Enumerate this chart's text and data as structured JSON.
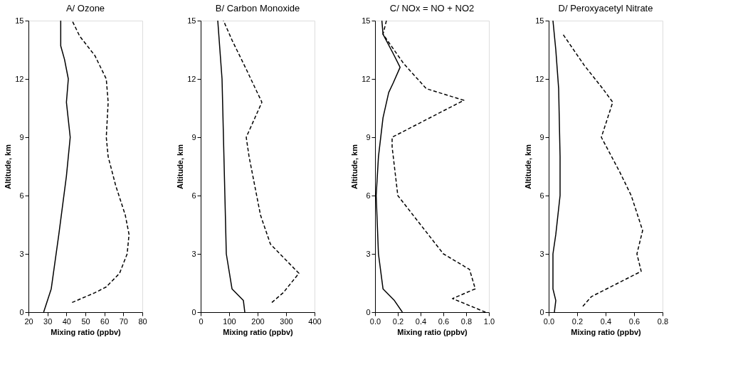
{
  "chart_data": [
    {
      "type": "line",
      "title": "A/ Ozone",
      "xlabel": "Mixing ratio (ppbv)",
      "ylabel": "Altitude, km",
      "xlim": [
        20,
        80
      ],
      "xticks": [
        20,
        30,
        40,
        50,
        60,
        70,
        80
      ],
      "ylim": [
        0,
        15
      ],
      "yticks": [
        0,
        3,
        6,
        9,
        12,
        15
      ],
      "grid": false,
      "series": [
        {
          "color": "#000000",
          "line_style": "solid",
          "x": [
            28,
            32,
            36,
            40,
            42,
            40,
            41,
            39,
            37,
            37
          ],
          "values": [
            0,
            1.2,
            4,
            7,
            9,
            10.8,
            12,
            13,
            13.7,
            15
          ]
        },
        {
          "color": "#000000",
          "line_style": "dashed",
          "x": [
            43,
            55,
            61,
            68,
            72,
            73,
            71,
            66,
            62,
            61,
            62,
            61,
            55,
            47,
            43
          ],
          "values": [
            0.5,
            1,
            1.3,
            2,
            3,
            4,
            5,
            6.5,
            8,
            9,
            10.8,
            12,
            13.2,
            14.2,
            15
          ]
        }
      ]
    },
    {
      "type": "line",
      "title": "B/ Carbon Monoxide",
      "xlabel": "Mixing ratio (ppbv)",
      "ylabel": "Altitude, km",
      "xlim": [
        0,
        400
      ],
      "xticks": [
        0,
        100,
        200,
        300,
        400
      ],
      "ylim": [
        0,
        15
      ],
      "yticks": [
        0,
        3,
        6,
        9,
        12,
        15
      ],
      "grid": false,
      "series": [
        {
          "color": "#000000",
          "line_style": "solid",
          "x": [
            155,
            150,
            110,
            90,
            85,
            80,
            75,
            60
          ],
          "values": [
            0,
            0.6,
            1.2,
            3,
            6,
            9,
            12,
            15
          ]
        },
        {
          "color": "#000000",
          "line_style": "dashed",
          "x": [
            250,
            290,
            345,
            245,
            210,
            170,
            160,
            215,
            160,
            110,
            80
          ],
          "values": [
            0.5,
            1,
            2,
            3.5,
            5,
            8,
            9,
            10.8,
            12.5,
            14,
            15
          ]
        }
      ]
    },
    {
      "type": "line",
      "title": "C/ NOx = NO + NO2",
      "xlabel": "Mixing ratio (ppbv)",
      "ylabel": "Altitude, km",
      "xlim": [
        0,
        1
      ],
      "xticks": [
        {
          "value": 0,
          "label": "0.0"
        },
        {
          "value": 0.2,
          "label": "0.2"
        },
        {
          "value": 0.4,
          "label": "0.4"
        },
        {
          "value": 0.6,
          "label": "0.6"
        },
        {
          "value": 0.8,
          "label": "0.8"
        },
        {
          "value": 1,
          "label": "1.0"
        }
      ],
      "ylim": [
        0,
        15
      ],
      "yticks": [
        0,
        3,
        6,
        9,
        12,
        15
      ],
      "grid": false,
      "series": [
        {
          "color": "#000000",
          "line_style": "solid",
          "x": [
            0.24,
            0.17,
            0.07,
            0.03,
            0.01,
            0.03,
            0.07,
            0.12,
            0.16,
            0.22,
            0.16,
            0.07,
            0.06
          ],
          "values": [
            0,
            0.6,
            1.2,
            3,
            6,
            8,
            10,
            11.3,
            11.8,
            12.6,
            13.3,
            14.3,
            15
          ]
        },
        {
          "color": "#000000",
          "line_style": "dashed",
          "x": [
            0.97,
            0.68,
            0.88,
            0.83,
            0.6,
            0.4,
            0.2,
            0.15,
            0.15,
            0.78,
            0.45,
            0.25,
            0.07,
            0.1
          ],
          "values": [
            0,
            0.7,
            1.2,
            2.2,
            3,
            4.5,
            6,
            8.5,
            9,
            10.9,
            11.5,
            12.8,
            14.3,
            15
          ]
        }
      ]
    },
    {
      "type": "line",
      "title": "D/ Peroxyacetyl Nitrate",
      "xlabel": "Mixing ratio (ppbv)",
      "ylabel": "Altitude, km",
      "xlim": [
        0,
        0.8
      ],
      "xticks": [
        {
          "value": 0,
          "label": "0.0"
        },
        {
          "value": 0.2,
          "label": "0.2"
        },
        {
          "value": 0.4,
          "label": "0.4"
        },
        {
          "value": 0.6,
          "label": "0.6"
        },
        {
          "value": 0.8,
          "label": "0.8"
        }
      ],
      "ylim": [
        0,
        15
      ],
      "yticks": [
        0,
        3,
        6,
        9,
        12,
        15
      ],
      "grid": false,
      "series": [
        {
          "color": "#000000",
          "line_style": "solid",
          "x": [
            0.04,
            0.05,
            0.03,
            0.03,
            0.05,
            0.08,
            0.08,
            0.07,
            0.05,
            0.03
          ],
          "values": [
            0,
            0.6,
            1.2,
            3,
            4,
            6,
            8,
            11.5,
            13.5,
            15
          ]
        },
        {
          "color": "#000000",
          "line_style": "dashed",
          "x": [
            0.24,
            0.3,
            0.65,
            0.62,
            0.66,
            0.58,
            0.5,
            0.37,
            0.45,
            0.38,
            0.25,
            0.1
          ],
          "values": [
            0.3,
            0.8,
            2.1,
            3,
            4.2,
            6,
            7.2,
            9,
            10.8,
            11.5,
            12.7,
            14.3
          ]
        }
      ]
    }
  ]
}
